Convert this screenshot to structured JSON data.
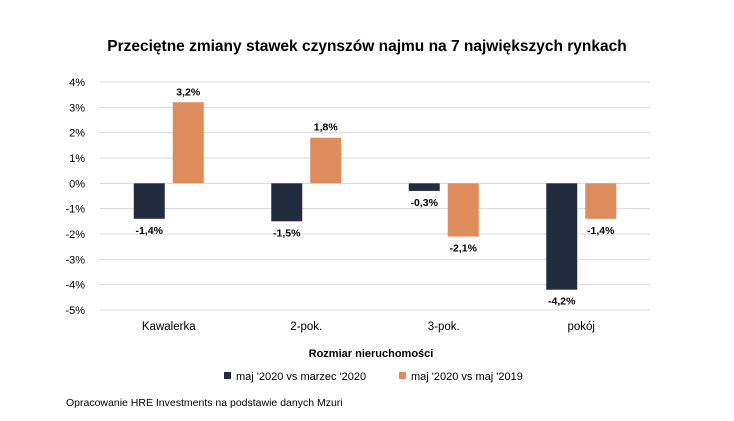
{
  "chart_data": {
    "type": "bar",
    "title": "Przeciętne zmiany stawek czynszów najmu na 7 największych rynkach",
    "xlabel": "Rozmiar nieruchomości",
    "ylabel": "",
    "categories": [
      "Kawalerka",
      "2-pok.",
      "3-pok.",
      "pokój"
    ],
    "series": [
      {
        "name": "maj '2020 vs marzec '2020",
        "values": [
          -1.4,
          -1.5,
          -0.3,
          -4.2
        ],
        "labels": [
          "-1,4%",
          "-1,5%",
          "-0,3%",
          "-4,2%"
        ],
        "color": "#232b3f"
      },
      {
        "name": "maj '2020 vs maj '2019",
        "values": [
          3.2,
          1.8,
          -2.1,
          -1.4
        ],
        "labels": [
          "3,2%",
          "1,8%",
          "-2,1%",
          "-1,4%"
        ],
        "color": "#de8c5b"
      }
    ],
    "ylim": [
      -5,
      4
    ],
    "yticks": [
      4,
      3,
      2,
      1,
      0,
      -1,
      -2,
      -3,
      -4,
      -5
    ],
    "ytick_labels": [
      "4%",
      "3%",
      "2%",
      "1%",
      "0%",
      "-1%",
      "-2%",
      "-3%",
      "-4%",
      "-5%"
    ],
    "grid": true,
    "legend_position": "bottom"
  },
  "source_note": "Opracowanie HRE Investments na podstawie danych Mzuri"
}
